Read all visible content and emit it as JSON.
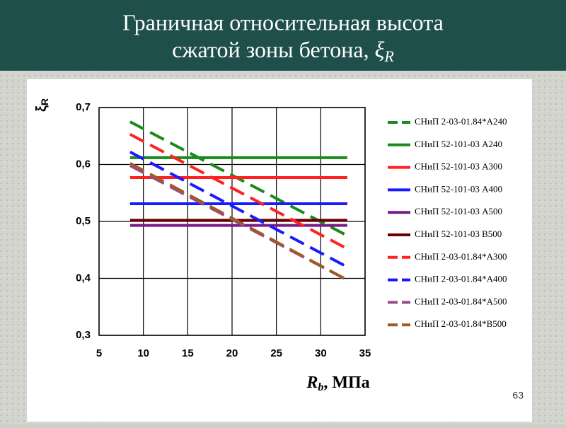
{
  "header": {
    "line1": "Граничная относительная высота",
    "line2": "сжатой зоны бетона, ",
    "symbol": "ξ",
    "subscript": "R"
  },
  "slide_number": "63",
  "chart_data": {
    "type": "line",
    "y_label": {
      "symbol": "ξ",
      "subscript": "R"
    },
    "x_label": {
      "symbol": "R",
      "subscript": "b",
      "unit": ", МПа"
    },
    "x": [
      8.5,
      33
    ],
    "xlim": [
      5,
      35
    ],
    "xticks": [
      5,
      10,
      15,
      20,
      25,
      30,
      35
    ],
    "ylim": [
      0.3,
      0.7
    ],
    "yticks": [
      {
        "value": 0.3,
        "label": "0,3"
      },
      {
        "value": 0.4,
        "label": "0,4"
      },
      {
        "value": 0.5,
        "label": "0,5"
      },
      {
        "value": 0.6,
        "label": "0,6"
      },
      {
        "value": 0.7,
        "label": "0,7"
      }
    ],
    "grid": true,
    "series": [
      {
        "name": "СНиП 2-03-01.84*А240",
        "color": "#1a8a1a",
        "dashed": true,
        "values": [
          0.675,
          0.475
        ]
      },
      {
        "name": "СНиП 52-101-03  А240",
        "color": "#1a8a1a",
        "dashed": false,
        "values": [
          0.612,
          0.612
        ]
      },
      {
        "name": "СНиП 52-101-03 А300",
        "color": "#ff2020",
        "dashed": false,
        "values": [
          0.577,
          0.577
        ]
      },
      {
        "name": "СНиП 52-101-03 А400",
        "color": "#1a1aff",
        "dashed": false,
        "values": [
          0.531,
          0.531
        ]
      },
      {
        "name": "СНиП 52-101-03  А500",
        "color": "#7a1a8a",
        "dashed": false,
        "values": [
          0.493,
          0.493
        ]
      },
      {
        "name": "СНиП 52-101-03 В500",
        "color": "#6a0000",
        "dashed": false,
        "values": [
          0.502,
          0.502
        ]
      },
      {
        "name": "СНиП 2-03-01.84*А300",
        "color": "#ff2020",
        "dashed": true,
        "values": [
          0.653,
          0.452
        ]
      },
      {
        "name": "СНиП 2-03-01.84*А400",
        "color": "#1a1aff",
        "dashed": true,
        "values": [
          0.622,
          0.42
        ]
      },
      {
        "name": "СНиП 2-03-01.84*А500",
        "color": "#9a4a8a",
        "dashed": true,
        "values": [
          0.598,
          0.397
        ]
      },
      {
        "name": "СНиП 2-03-01.84*В500",
        "color": "#a05a2a",
        "dashed": true,
        "values": [
          0.602,
          0.397
        ]
      }
    ]
  }
}
